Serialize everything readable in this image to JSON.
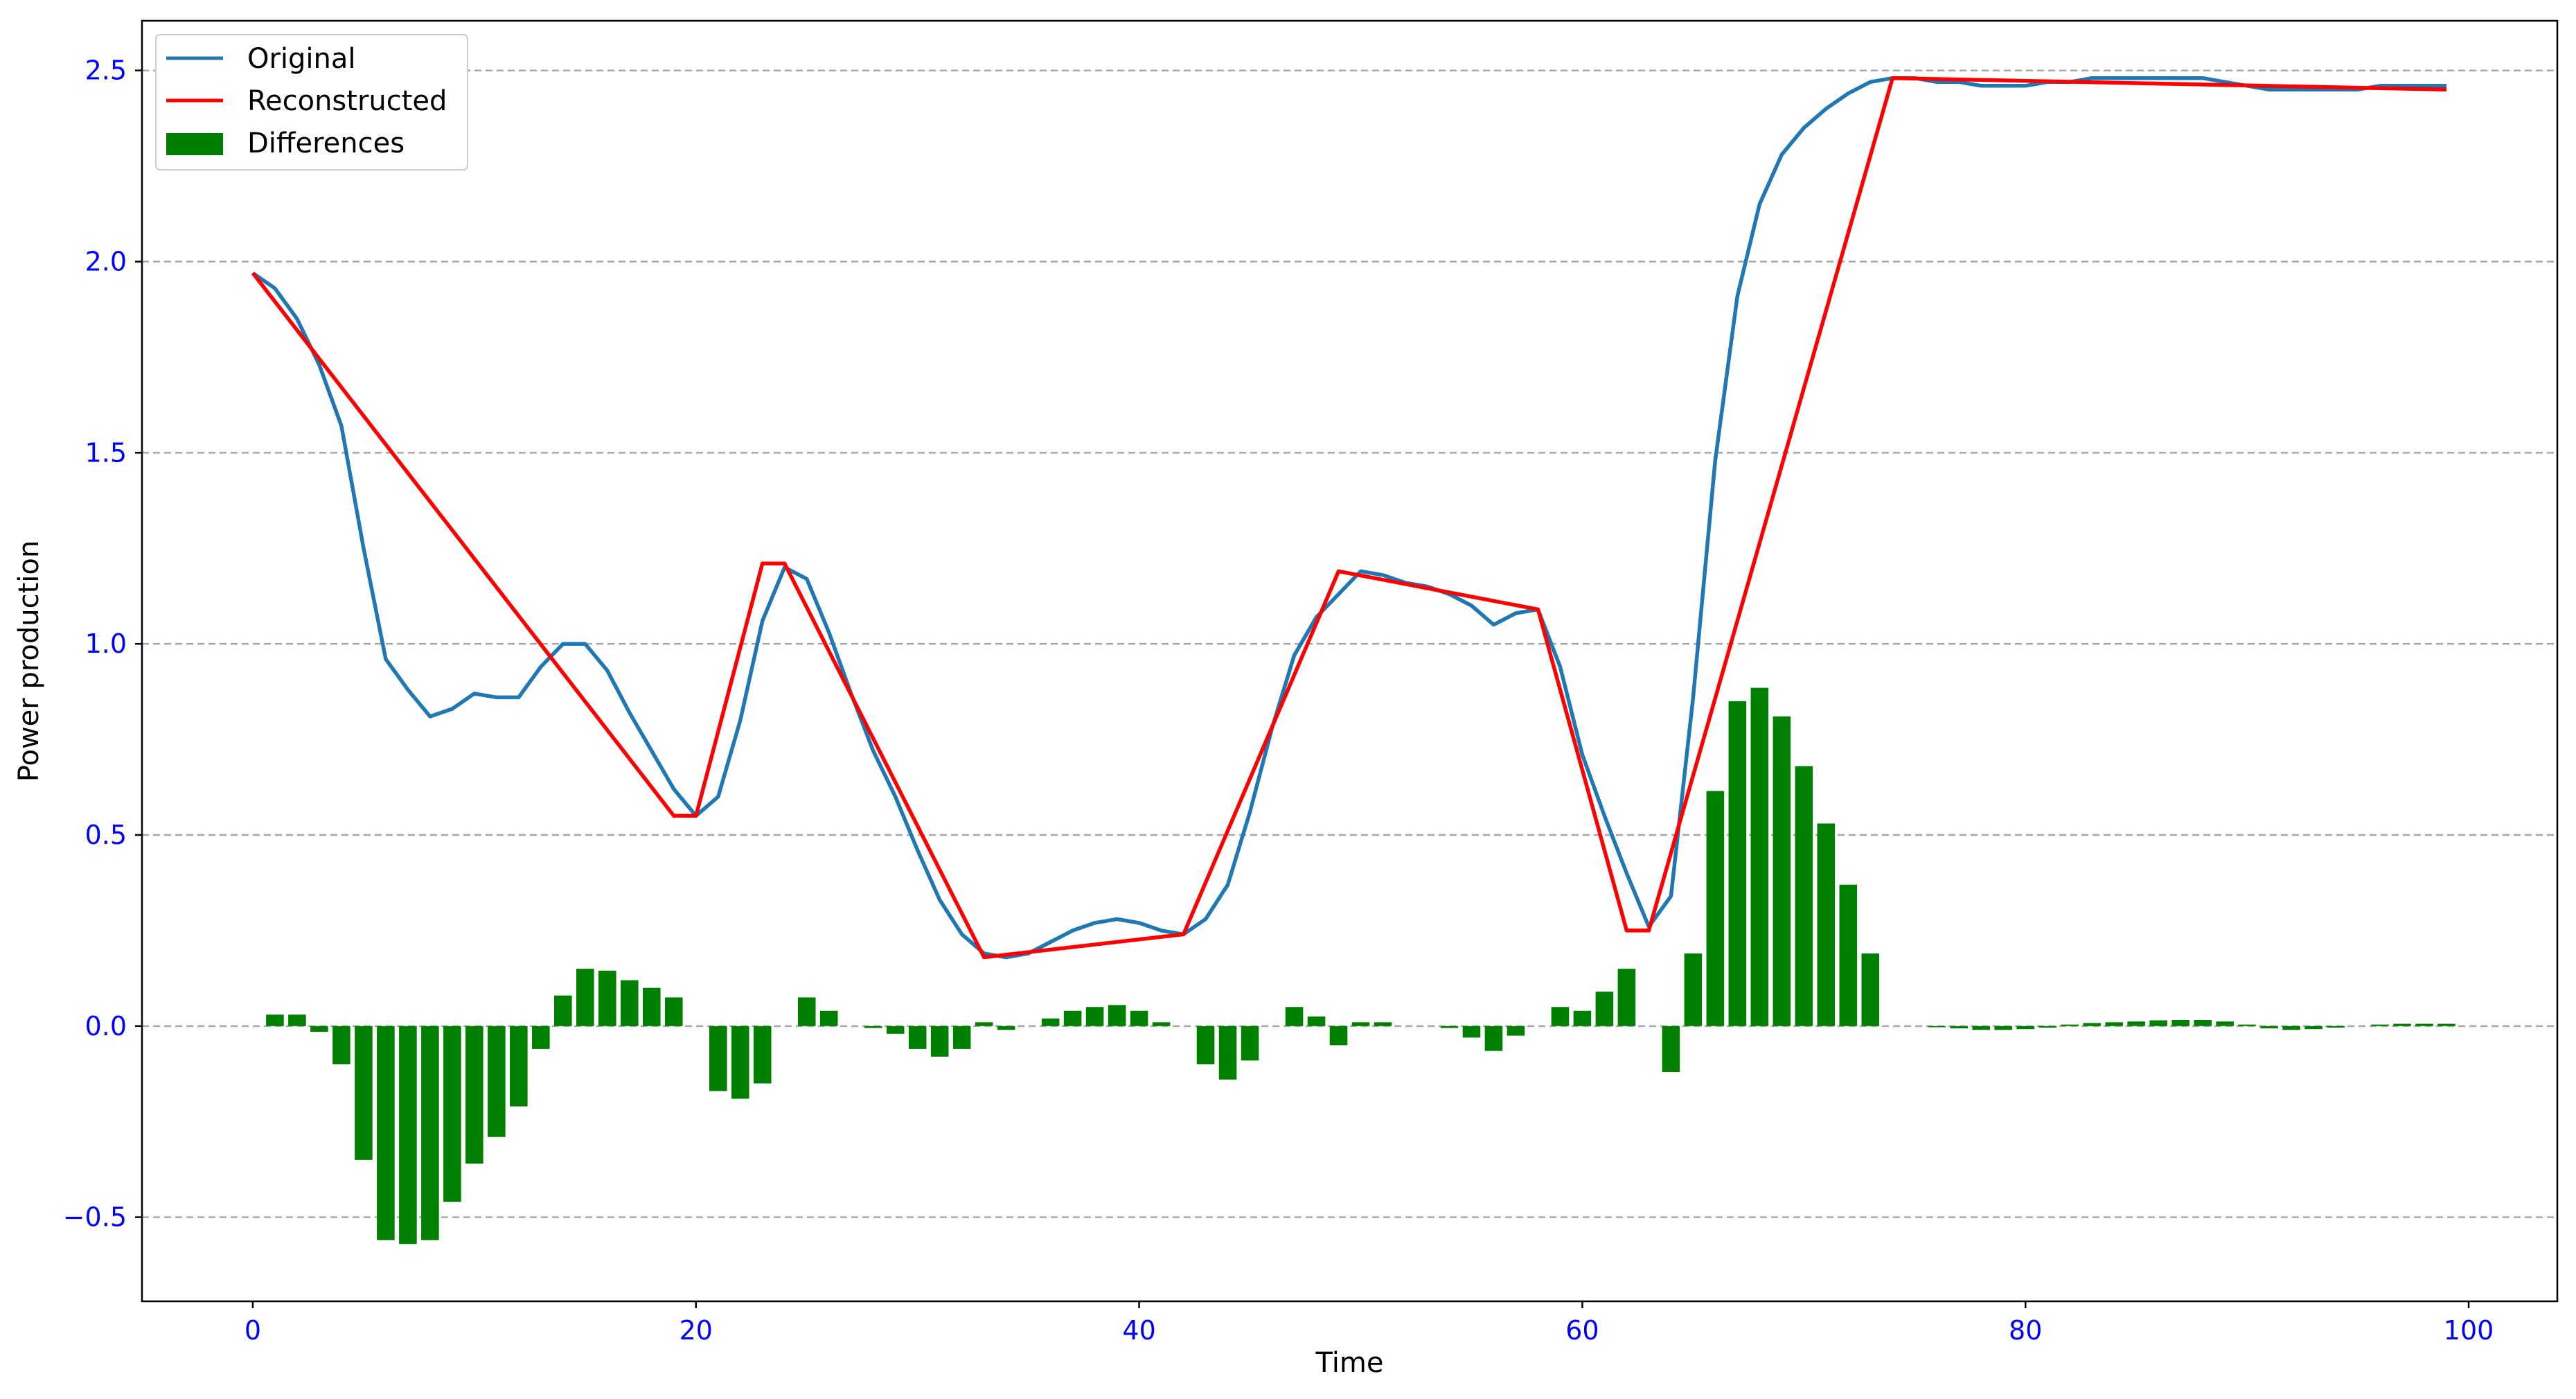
{
  "chart_data": {
    "type": "line",
    "title": "",
    "xlabel": "Time",
    "ylabel": "Power production",
    "xlim": [
      -5,
      104
    ],
    "ylim": [
      -0.72,
      2.63
    ],
    "x_ticks": [
      "0",
      "20",
      "40",
      "60",
      "80",
      "100"
    ],
    "x_tick_values": [
      0,
      20,
      40,
      60,
      80,
      100
    ],
    "y_ticks": [
      "−0.5",
      "0.0",
      "0.5",
      "1.0",
      "1.5",
      "2.0",
      "2.5"
    ],
    "y_tick_values": [
      -0.5,
      0,
      0.5,
      1.0,
      1.5,
      2.0,
      2.5
    ],
    "grid": "horizontal dashed",
    "legend_position": "top-left",
    "colors": {
      "original": "#1f77b4",
      "reconstructed": "#ff0000",
      "differences": "#008000",
      "tick_labels": "#0000ff"
    },
    "series": [
      {
        "name": "Original",
        "kind": "line",
        "x": [
          0,
          1,
          2,
          3,
          4,
          5,
          6,
          7,
          8,
          9,
          10,
          11,
          12,
          13,
          14,
          15,
          16,
          17,
          18,
          19,
          20,
          21,
          22,
          23,
          24,
          25,
          26,
          27,
          28,
          29,
          30,
          31,
          32,
          33,
          34,
          35,
          36,
          37,
          38,
          39,
          40,
          41,
          42,
          43,
          44,
          45,
          46,
          47,
          48,
          49,
          50,
          51,
          52,
          53,
          54,
          55,
          56,
          57,
          58,
          59,
          60,
          61,
          62,
          63,
          64,
          65,
          66,
          67,
          68,
          69,
          70,
          71,
          72,
          73,
          74,
          75,
          76,
          77,
          78,
          79,
          80,
          81,
          82,
          83,
          84,
          85,
          86,
          87,
          88,
          89,
          90,
          91,
          92,
          93,
          94,
          95,
          96,
          97,
          98,
          99
        ],
        "values": [
          1.97,
          1.93,
          1.85,
          1.73,
          1.57,
          1.25,
          0.96,
          0.88,
          0.81,
          0.83,
          0.87,
          0.86,
          0.86,
          0.94,
          1.0,
          1.0,
          0.93,
          0.82,
          0.72,
          0.62,
          0.55,
          0.6,
          0.8,
          1.06,
          1.2,
          1.17,
          1.03,
          0.87,
          0.72,
          0.6,
          0.46,
          0.33,
          0.24,
          0.19,
          0.18,
          0.19,
          0.22,
          0.25,
          0.27,
          0.28,
          0.27,
          0.25,
          0.24,
          0.28,
          0.37,
          0.56,
          0.78,
          0.97,
          1.07,
          1.13,
          1.19,
          1.18,
          1.16,
          1.15,
          1.13,
          1.1,
          1.05,
          1.08,
          1.09,
          0.94,
          0.71,
          0.55,
          0.4,
          0.26,
          0.34,
          0.86,
          1.48,
          1.91,
          2.15,
          2.28,
          2.35,
          2.4,
          2.44,
          2.47,
          2.48,
          2.48,
          2.47,
          2.47,
          2.46,
          2.46,
          2.46,
          2.47,
          2.47,
          2.48,
          2.48,
          2.48,
          2.48,
          2.48,
          2.48,
          2.47,
          2.46,
          2.45,
          2.45,
          2.45,
          2.45,
          2.45,
          2.46,
          2.46,
          2.46,
          2.46
        ]
      },
      {
        "name": "Reconstructed",
        "kind": "line",
        "x": [
          0,
          19,
          20,
          23,
          24,
          33,
          42,
          49,
          58,
          62,
          63,
          74,
          99
        ],
        "values": [
          1.97,
          0.55,
          0.55,
          1.21,
          1.21,
          0.18,
          0.24,
          1.19,
          1.09,
          0.25,
          0.25,
          2.48,
          2.45
        ]
      },
      {
        "name": "Differences",
        "kind": "bar",
        "x": [
          1,
          2,
          3,
          4,
          5,
          6,
          7,
          8,
          9,
          10,
          11,
          12,
          13,
          14,
          15,
          16,
          17,
          18,
          19,
          20,
          21,
          22,
          23,
          24,
          25,
          26,
          27,
          28,
          29,
          30,
          31,
          32,
          33,
          34,
          35,
          36,
          37,
          38,
          39,
          40,
          41,
          42,
          43,
          44,
          45,
          46,
          47,
          48,
          49,
          50,
          51,
          52,
          53,
          54,
          55,
          56,
          57,
          58,
          59,
          60,
          61,
          62,
          63,
          64,
          65,
          66,
          67,
          68,
          69,
          70,
          71,
          72,
          73,
          74,
          75,
          76,
          77,
          78,
          79,
          80,
          81,
          82,
          83,
          84,
          85,
          86,
          87,
          88,
          89,
          90,
          91,
          92,
          93,
          94,
          95,
          96,
          97,
          98,
          99
        ],
        "values": [
          0.03,
          0.03,
          -0.015,
          -0.1,
          -0.35,
          -0.56,
          -0.57,
          -0.56,
          -0.46,
          -0.36,
          -0.29,
          -0.21,
          -0.06,
          0.08,
          0.15,
          0.145,
          0.12,
          0.1,
          0.075,
          0.0,
          -0.17,
          -0.19,
          -0.15,
          0.0,
          0.075,
          0.04,
          0.0,
          -0.005,
          -0.02,
          -0.06,
          -0.08,
          -0.06,
          0.01,
          -0.01,
          0.0,
          0.02,
          0.04,
          0.05,
          0.055,
          0.04,
          0.01,
          0.0,
          -0.1,
          -0.14,
          -0.09,
          0.0,
          0.05,
          0.025,
          -0.05,
          0.01,
          0.01,
          0.0,
          0.0,
          -0.005,
          -0.03,
          -0.065,
          -0.025,
          0.0,
          0.05,
          0.04,
          0.09,
          0.15,
          0.0,
          -0.12,
          0.19,
          0.615,
          0.85,
          0.885,
          0.81,
          0.68,
          0.53,
          0.37,
          0.19,
          0.0,
          0.0,
          -0.003,
          -0.006,
          -0.01,
          -0.01,
          -0.008,
          -0.004,
          0.004,
          0.008,
          0.01,
          0.012,
          0.015,
          0.016,
          0.016,
          0.012,
          0.004,
          -0.006,
          -0.01,
          -0.008,
          -0.004,
          0.0,
          0.004,
          0.006,
          0.006,
          0.006
        ]
      }
    ]
  }
}
